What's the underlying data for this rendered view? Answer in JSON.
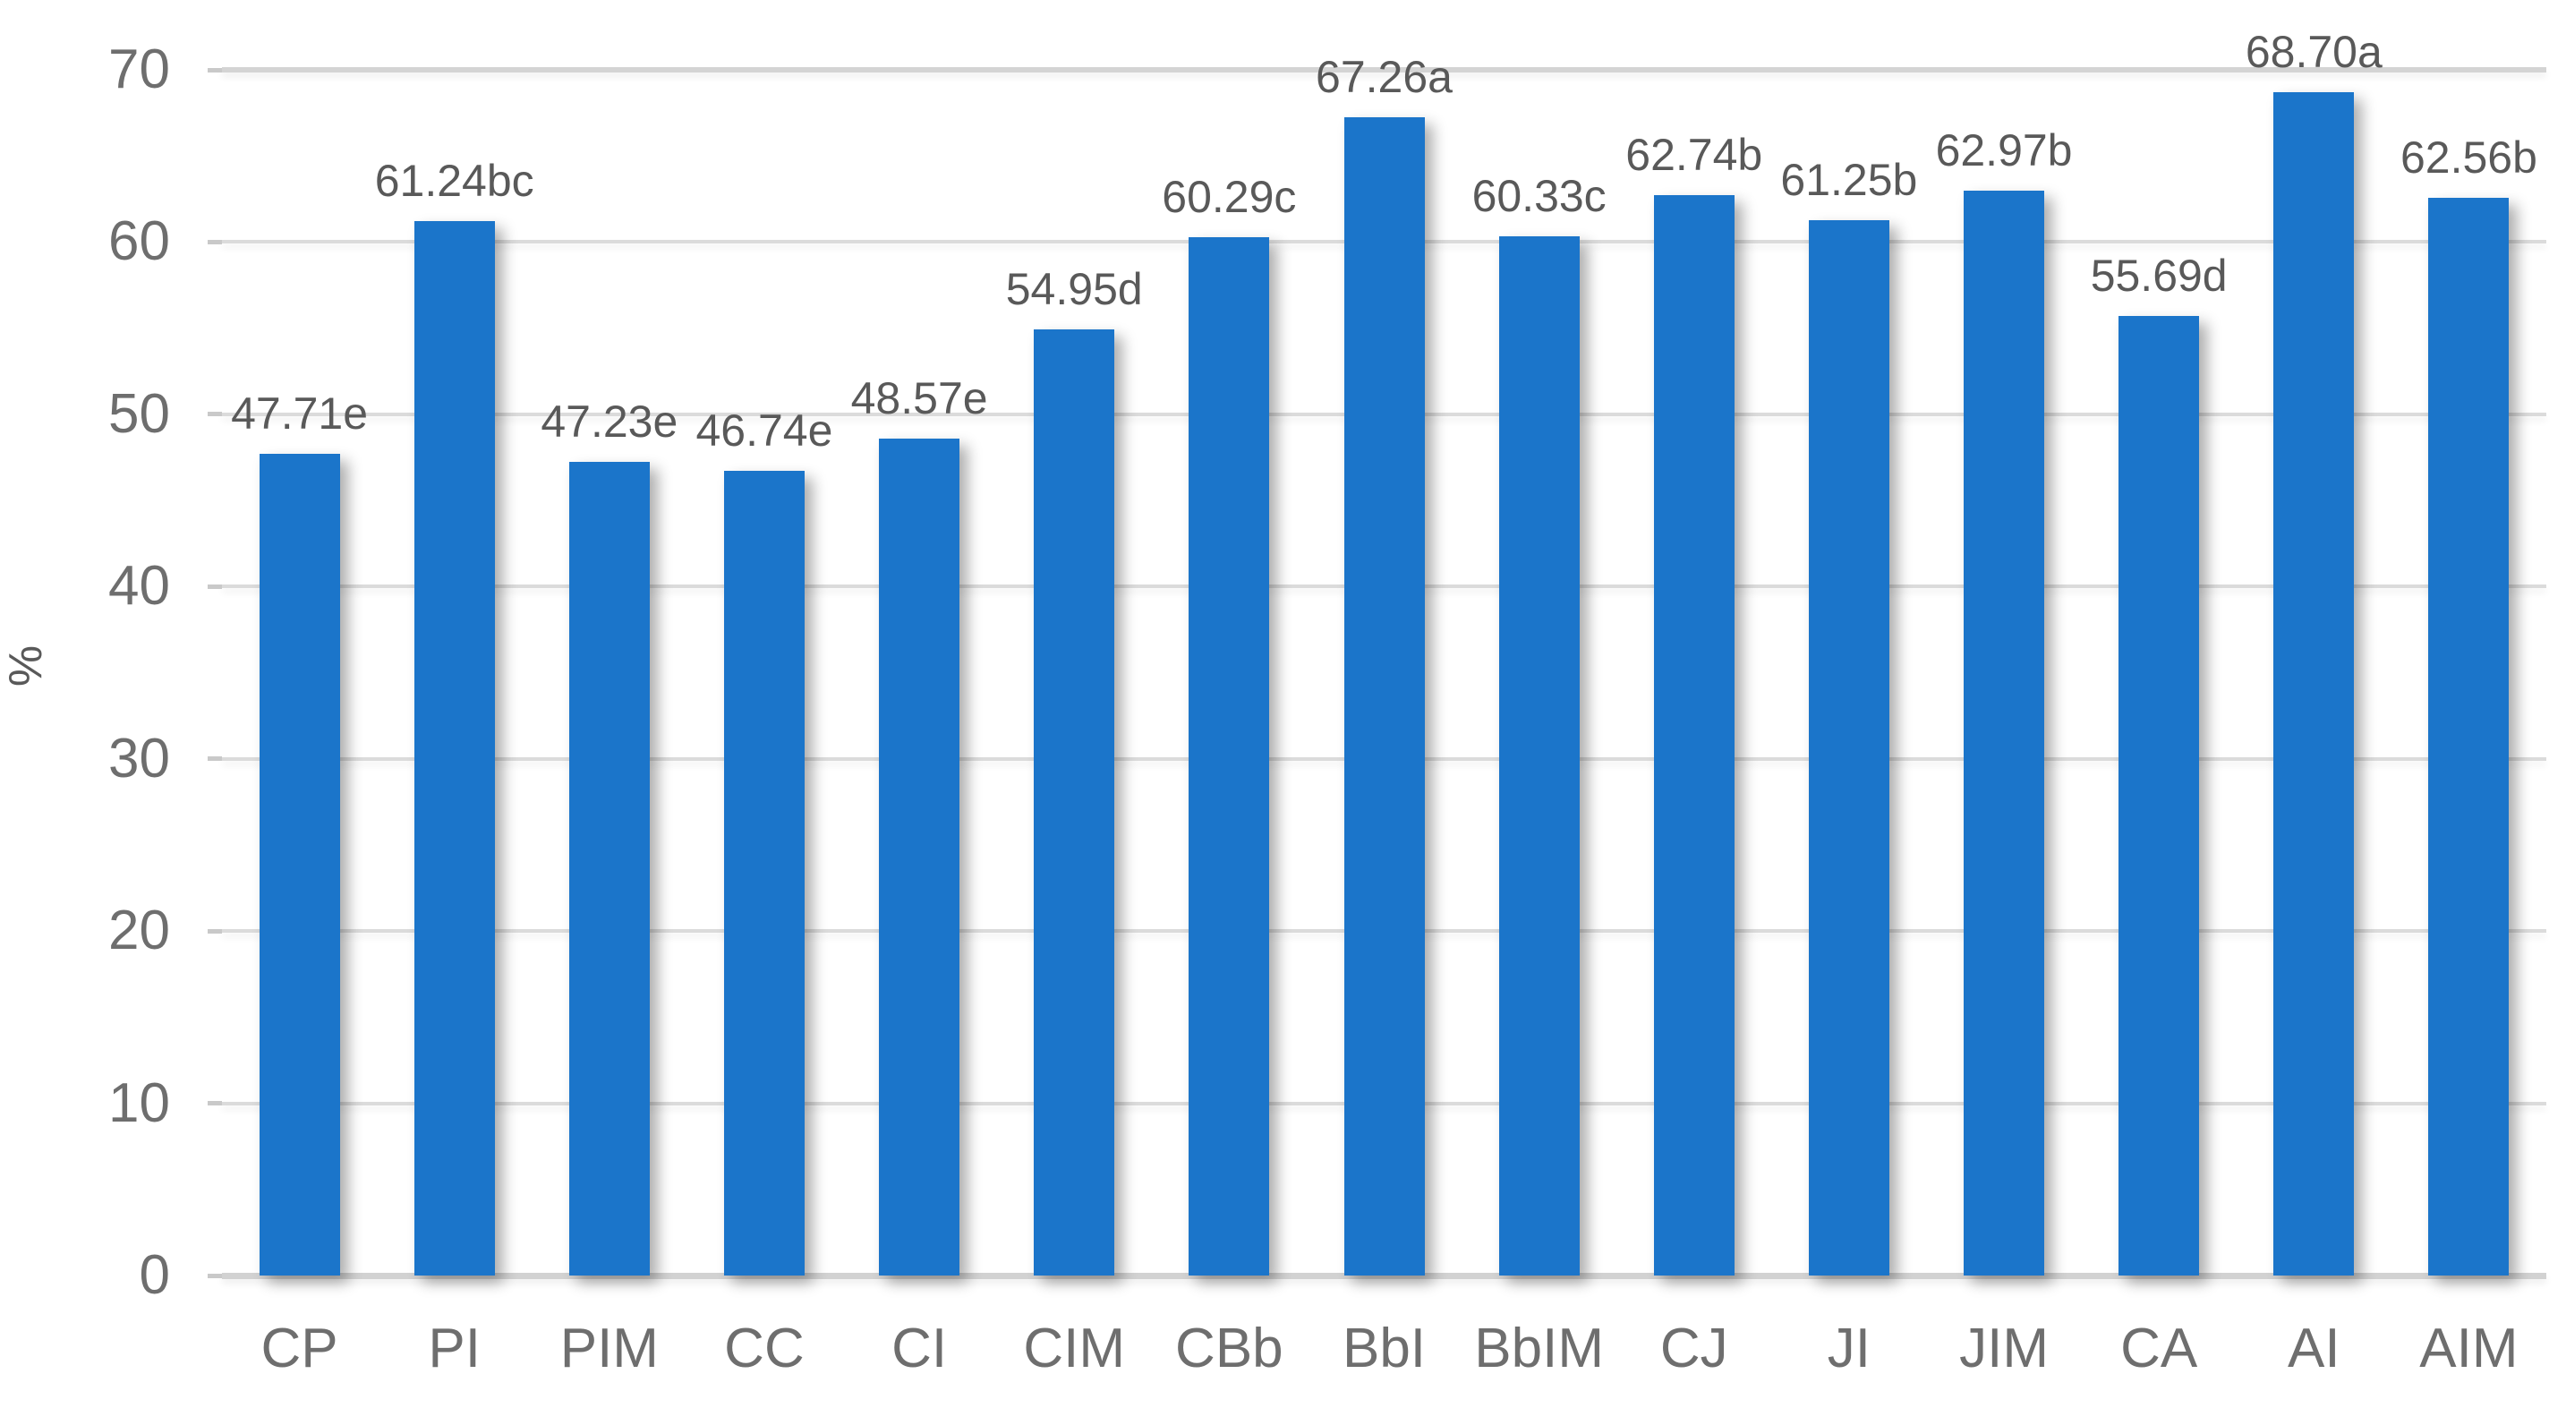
{
  "chart_data": {
    "type": "bar",
    "title": "",
    "xlabel": "",
    "ylabel": "%",
    "categories": [
      "CP",
      "PI",
      "PIM",
      "CC",
      "CI",
      "CIM",
      "CBb",
      "BbI",
      "BbIM",
      "CJ",
      "JI",
      "JIM",
      "CA",
      "AI",
      "AIM"
    ],
    "values": [
      47.71,
      61.24,
      47.23,
      46.74,
      48.57,
      54.95,
      60.29,
      67.26,
      60.33,
      62.74,
      61.25,
      62.97,
      55.69,
      68.7,
      62.56
    ],
    "data_labels": [
      "47.71e",
      "61.24bc",
      "47.23e",
      "46.74e",
      "48.57e",
      "54.95d",
      "60.29c",
      "67.26a",
      "60.33c",
      "62.74b",
      "61.25b",
      "62.97b",
      "55.69d",
      "68.70a",
      "62.56b"
    ],
    "ylim": [
      0,
      70
    ],
    "y_ticks": [
      0,
      10,
      20,
      30,
      40,
      50,
      60,
      70
    ],
    "grid": true,
    "legend_position": "none",
    "colors": {
      "bar": "#1B75CA",
      "gridline": "#DBDBDB",
      "axis_text": "#6E6E6E",
      "data_label_text": "#595959"
    }
  }
}
